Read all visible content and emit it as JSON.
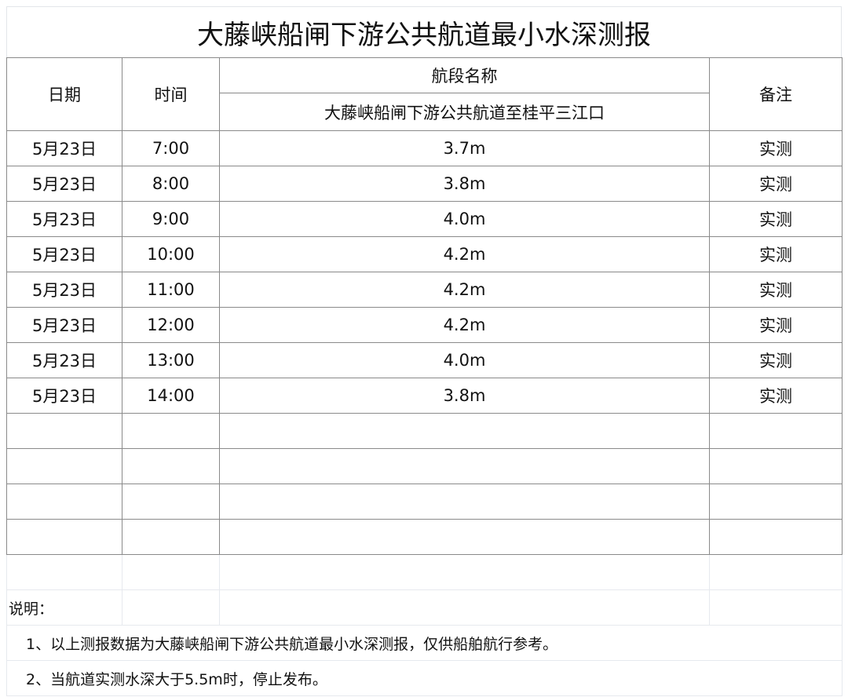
{
  "title": "大藤峡船闸下游公共航道最小水深测报",
  "header": {
    "date": "日期",
    "time": "时间",
    "section_name": "航段名称",
    "section_value": "大藤峡船闸下游公共航道至桂平三江口",
    "remark": "备注"
  },
  "rows": [
    {
      "date": "5月23日",
      "time": "7:00",
      "depth": "3.7m",
      "remark": "实测"
    },
    {
      "date": "5月23日",
      "time": "8:00",
      "depth": "3.8m",
      "remark": "实测"
    },
    {
      "date": "5月23日",
      "time": "9:00",
      "depth": "4.0m",
      "remark": "实测"
    },
    {
      "date": "5月23日",
      "time": "10:00",
      "depth": "4.2m",
      "remark": "实测"
    },
    {
      "date": "5月23日",
      "time": "11:00",
      "depth": "4.2m",
      "remark": "实测"
    },
    {
      "date": "5月23日",
      "time": "12:00",
      "depth": "4.2m",
      "remark": "实测"
    },
    {
      "date": "5月23日",
      "time": "13:00",
      "depth": "4.0m",
      "remark": "实测"
    },
    {
      "date": "5月23日",
      "time": "14:00",
      "depth": "3.8m",
      "remark": "实测"
    }
  ],
  "notes": {
    "label": "说明：",
    "items": [
      "1、以上测报数据为大藤峡船闸下游公共航道最小水深测报，仅供船舶航行参考。",
      "2、当航道实测水深大于5.5m时，停止发布。"
    ]
  }
}
